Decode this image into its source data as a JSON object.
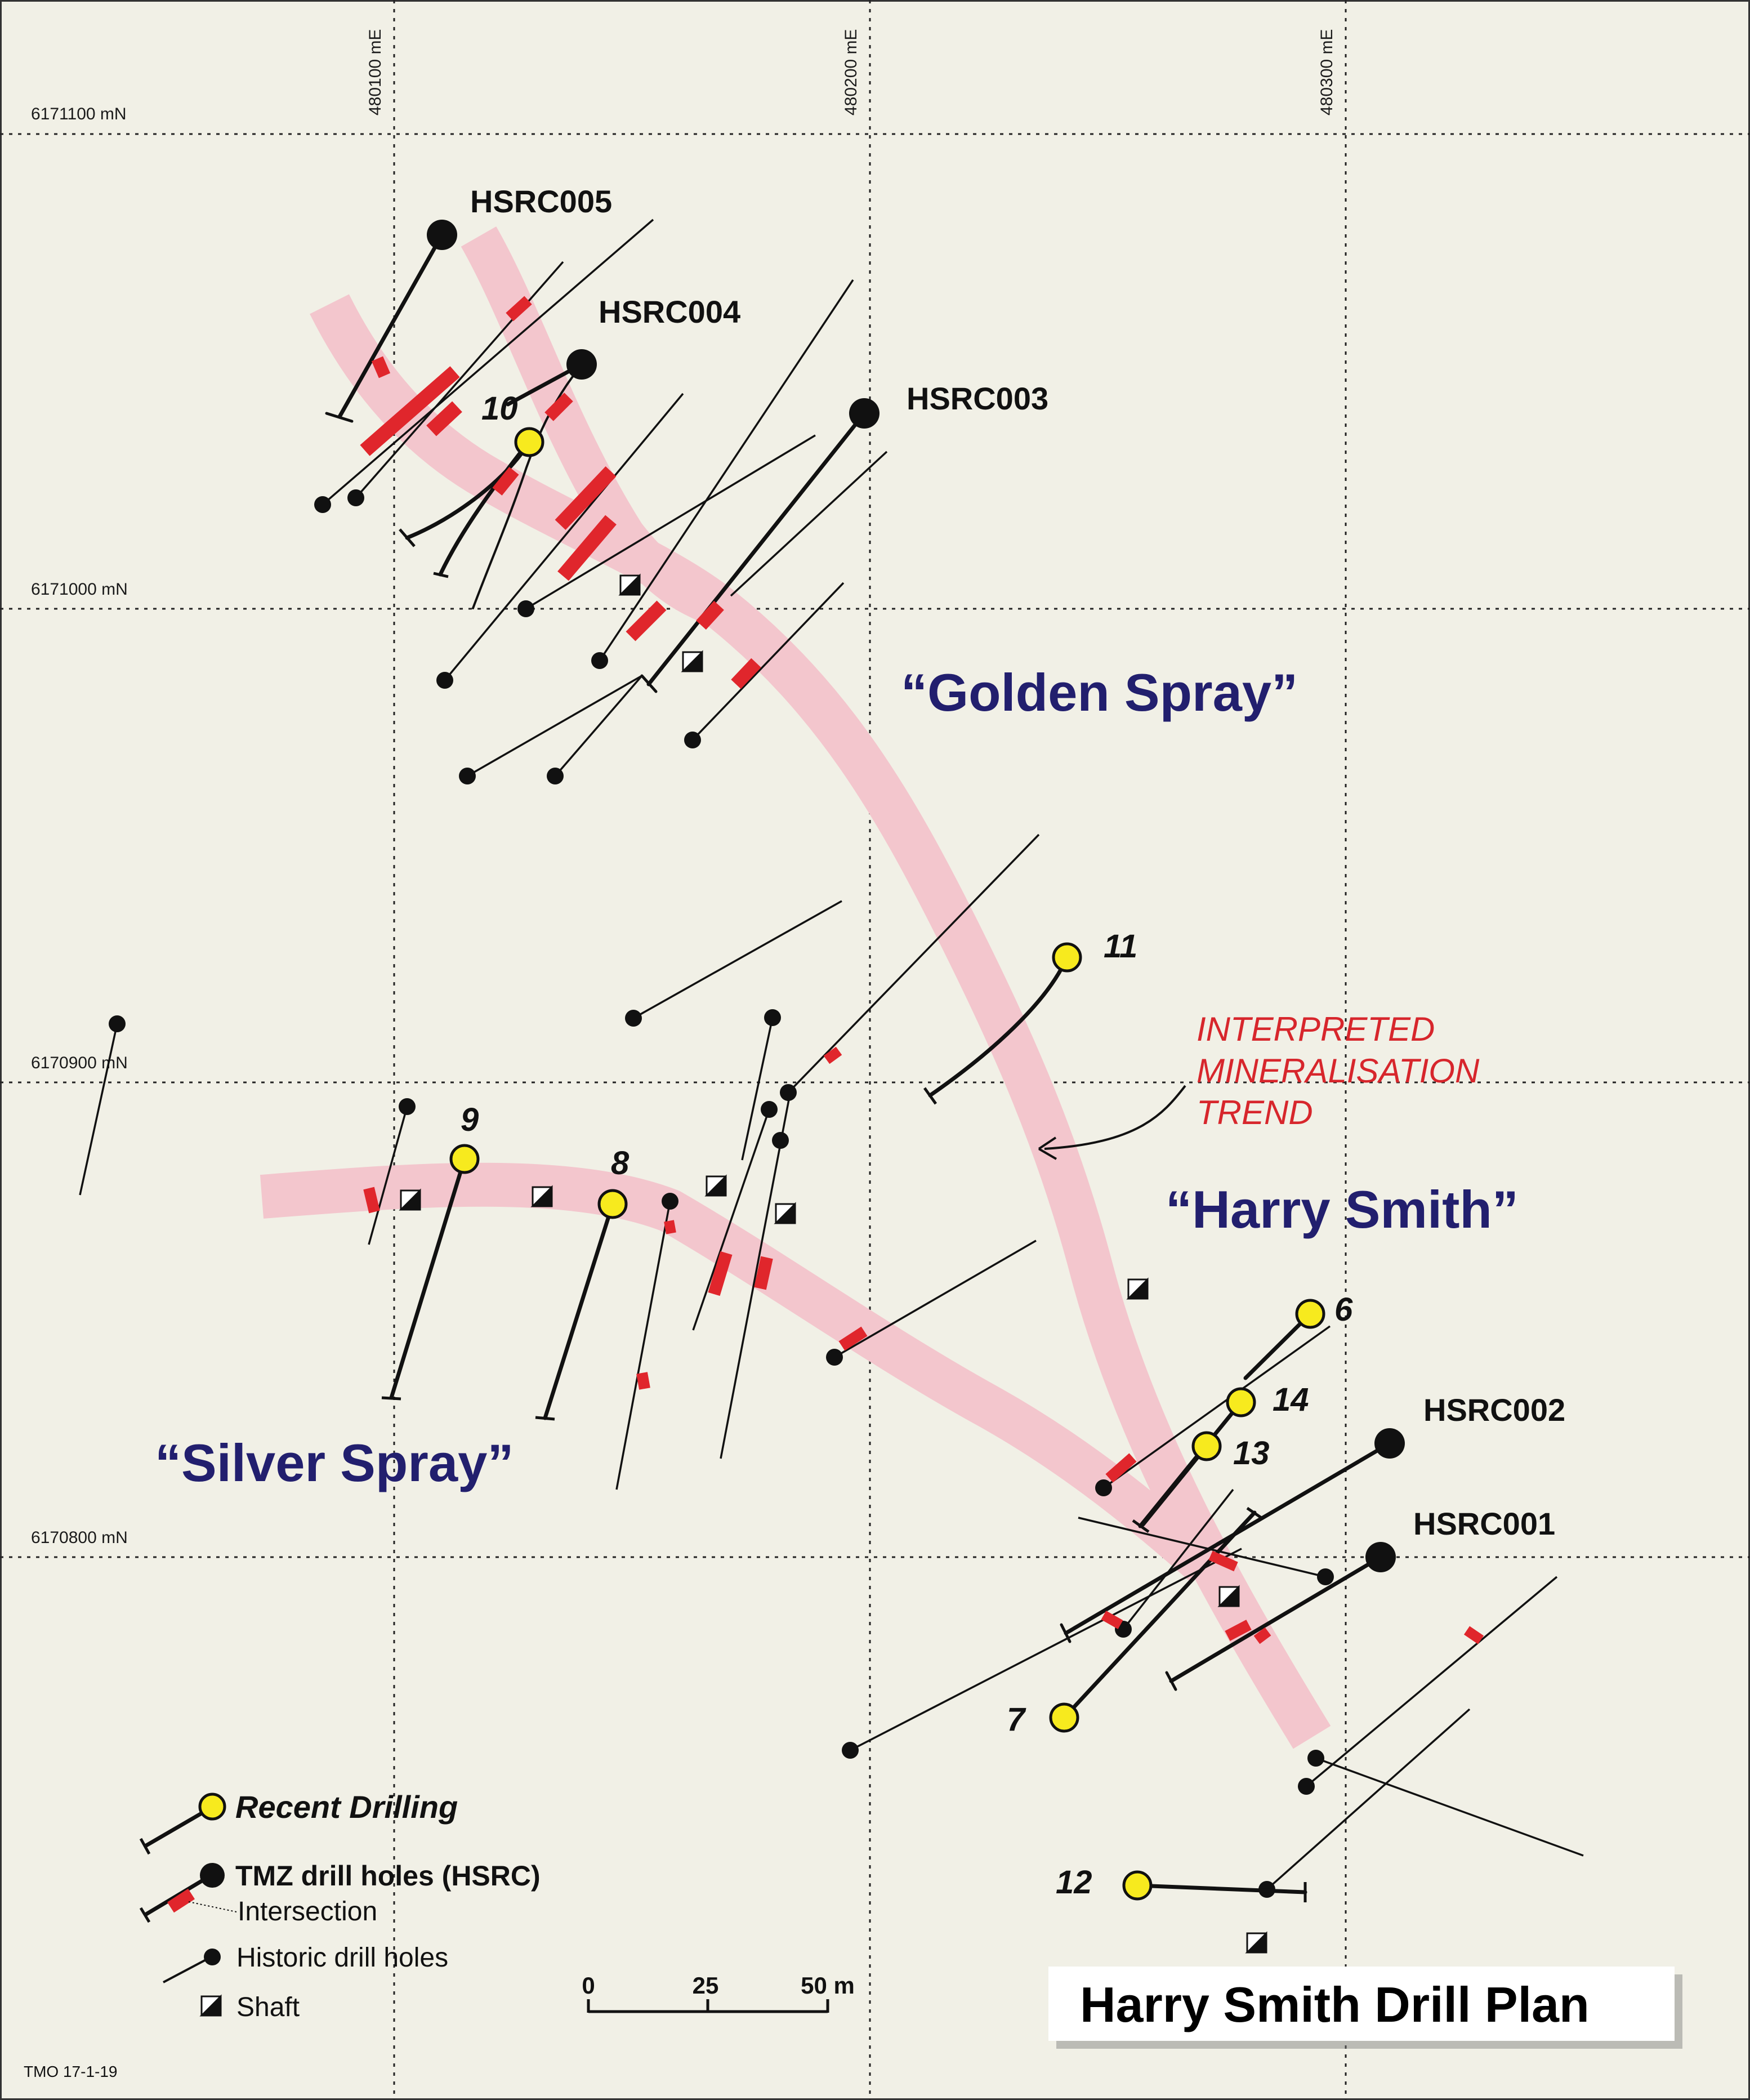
{
  "grid": {
    "eastings": [
      "480100 mE",
      "480200 mE",
      "480300 mE"
    ],
    "northings": [
      "6171100 mN",
      "6171000 mN",
      "6170900 mN",
      "6170800 mN"
    ]
  },
  "area_labels": {
    "golden_spray": "“Golden Spray”",
    "harry_smith": "“Harry Smith”",
    "silver_spray": "“Silver Spray”"
  },
  "trend_label": [
    "INTERPRETED",
    "MINERALISATION",
    "TREND"
  ],
  "tmz_holes": [
    "HSRC001",
    "HSRC002",
    "HSRC003",
    "HSRC004",
    "HSRC005"
  ],
  "recent_holes": [
    "6",
    "7",
    "8",
    "9",
    "10",
    "11",
    "12",
    "13",
    "14"
  ],
  "legend": {
    "recent": "Recent Drilling",
    "tmz": "TMZ drill holes (HSRC)",
    "intersection": "Intersection",
    "historic": "Historic drill holes",
    "shaft": "Shaft"
  },
  "scale": {
    "ticks": [
      "0",
      "25",
      "50 m"
    ]
  },
  "title": "Harry Smith Drill Plan",
  "ref": "TMO 17-1-19",
  "colors": {
    "background": "#f1f0e6",
    "trend_band": "#f3c6cd",
    "intersection": "#e0262c",
    "recent_collar": "#f7ea1e",
    "area_label": "#221f6e",
    "trend_label": "#d7262c"
  }
}
